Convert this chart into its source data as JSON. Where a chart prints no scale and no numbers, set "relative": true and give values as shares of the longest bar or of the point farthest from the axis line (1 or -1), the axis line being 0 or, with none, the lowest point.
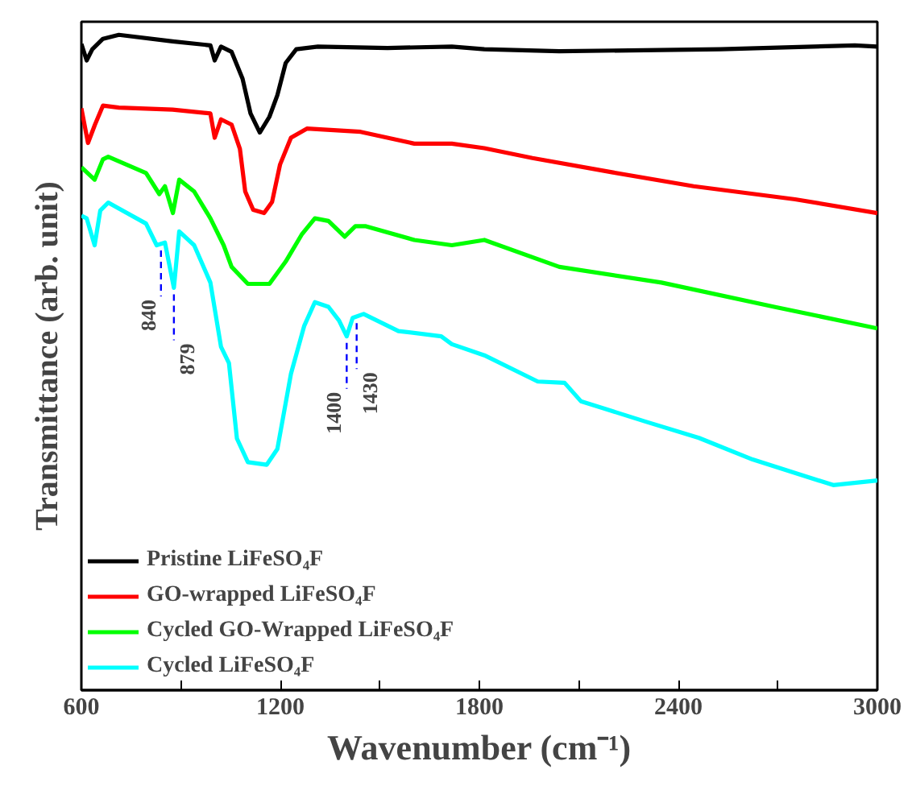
{
  "chart_data": {
    "type": "line",
    "xlabel": "Wavenumber (cm⁻¹)",
    "ylabel": "Transmittance (arb. unit)",
    "relative": true,
    "xlim": [
      600,
      3000
    ],
    "xticks": [
      600,
      {
        "value": 900,
        "label": null
      },
      1200,
      {
        "value": 1500,
        "label": null
      },
      1800,
      {
        "value": 2100,
        "label": null
      },
      2400,
      {
        "value": 2700,
        "label": null
      },
      3000
    ],
    "grid": false,
    "legend": "bottom left",
    "marker": "none",
    "line_style": "solid",
    "annotations": [
      {
        "text": "840",
        "x": 840,
        "y": 0.681
      },
      {
        "text": "879",
        "x": 879,
        "y": 0.614
      },
      {
        "text": "1400",
        "x": 1400,
        "y": 0.54
      },
      {
        "text": "1430",
        "x": 1430,
        "y": 0.57
      }
    ],
    "series": [
      {
        "name": "Pristine LiFeSO₄F",
        "color": "#000000",
        "x": [
          600,
          616,
          633,
          665,
          713,
          875,
          989,
          1002,
          1021,
          1053,
          1086,
          1110,
          1138,
          1167,
          1191,
          1216,
          1248,
          1313,
          1523,
          1717,
          1815,
          2041,
          2527,
          2932,
          3000
        ],
        "values": [
          0.986,
          0.961,
          0.978,
          0.994,
          1.0,
          0.99,
          0.984,
          0.961,
          0.982,
          0.974,
          0.933,
          0.88,
          0.851,
          0.875,
          0.908,
          0.957,
          0.978,
          0.982,
          0.98,
          0.982,
          0.978,
          0.975,
          0.978,
          0.984,
          0.982
        ]
      },
      {
        "name": "GO-wrapped LiFeSO₄F",
        "color": "#ff0000",
        "x": [
          600,
          620,
          641,
          665,
          713,
          875,
          989,
          1002,
          1021,
          1053,
          1078,
          1094,
          1118,
          1151,
          1175,
          1199,
          1232,
          1280,
          1442,
          1604,
          1717,
          1815,
          1960,
          2203,
          2446,
          2752,
          3000
        ],
        "values": [
          0.888,
          0.835,
          0.863,
          0.892,
          0.889,
          0.886,
          0.88,
          0.843,
          0.871,
          0.863,
          0.826,
          0.761,
          0.733,
          0.728,
          0.745,
          0.802,
          0.843,
          0.857,
          0.852,
          0.834,
          0.834,
          0.827,
          0.812,
          0.79,
          0.769,
          0.749,
          0.728
        ]
      },
      {
        "name": "Cycled GO-Wrapped LiFeSO₄F",
        "color": "#00ff00",
        "x": [
          600,
          640,
          665,
          681,
          795,
          835,
          852,
          876,
          895,
          940,
          989,
          1029,
          1053,
          1102,
          1167,
          1216,
          1264,
          1304,
          1345,
          1394,
          1426,
          1458,
          1604,
          1717,
          1815,
          2041,
          2349,
          2689,
          3000
        ],
        "values": [
          0.798,
          0.779,
          0.81,
          0.814,
          0.789,
          0.757,
          0.769,
          0.728,
          0.779,
          0.761,
          0.72,
          0.679,
          0.646,
          0.62,
          0.62,
          0.654,
          0.695,
          0.72,
          0.716,
          0.692,
          0.708,
          0.708,
          0.687,
          0.679,
          0.687,
          0.646,
          0.622,
          0.585,
          0.552
        ]
      },
      {
        "name": "Cycled LiFeSO₄F",
        "color": "#00ffff",
        "x": [
          600,
          616,
          640,
          657,
          681,
          795,
          827,
          852,
          879,
          895,
          940,
          989,
          1021,
          1045,
          1069,
          1102,
          1159,
          1191,
          1232,
          1272,
          1304,
          1345,
          1377,
          1400,
          1418,
          1451,
          1556,
          1685,
          1717,
          1815,
          1976,
          2057,
          2106,
          2300,
          2462,
          2624,
          2867,
          3000
        ],
        "values": [
          0.724,
          0.72,
          0.679,
          0.732,
          0.744,
          0.712,
          0.679,
          0.683,
          0.614,
          0.7,
          0.679,
          0.622,
          0.524,
          0.499,
          0.384,
          0.348,
          0.344,
          0.368,
          0.483,
          0.556,
          0.592,
          0.585,
          0.564,
          0.54,
          0.568,
          0.574,
          0.548,
          0.54,
          0.528,
          0.511,
          0.471,
          0.469,
          0.441,
          0.41,
          0.385,
          0.352,
          0.313,
          0.32
        ]
      }
    ]
  }
}
